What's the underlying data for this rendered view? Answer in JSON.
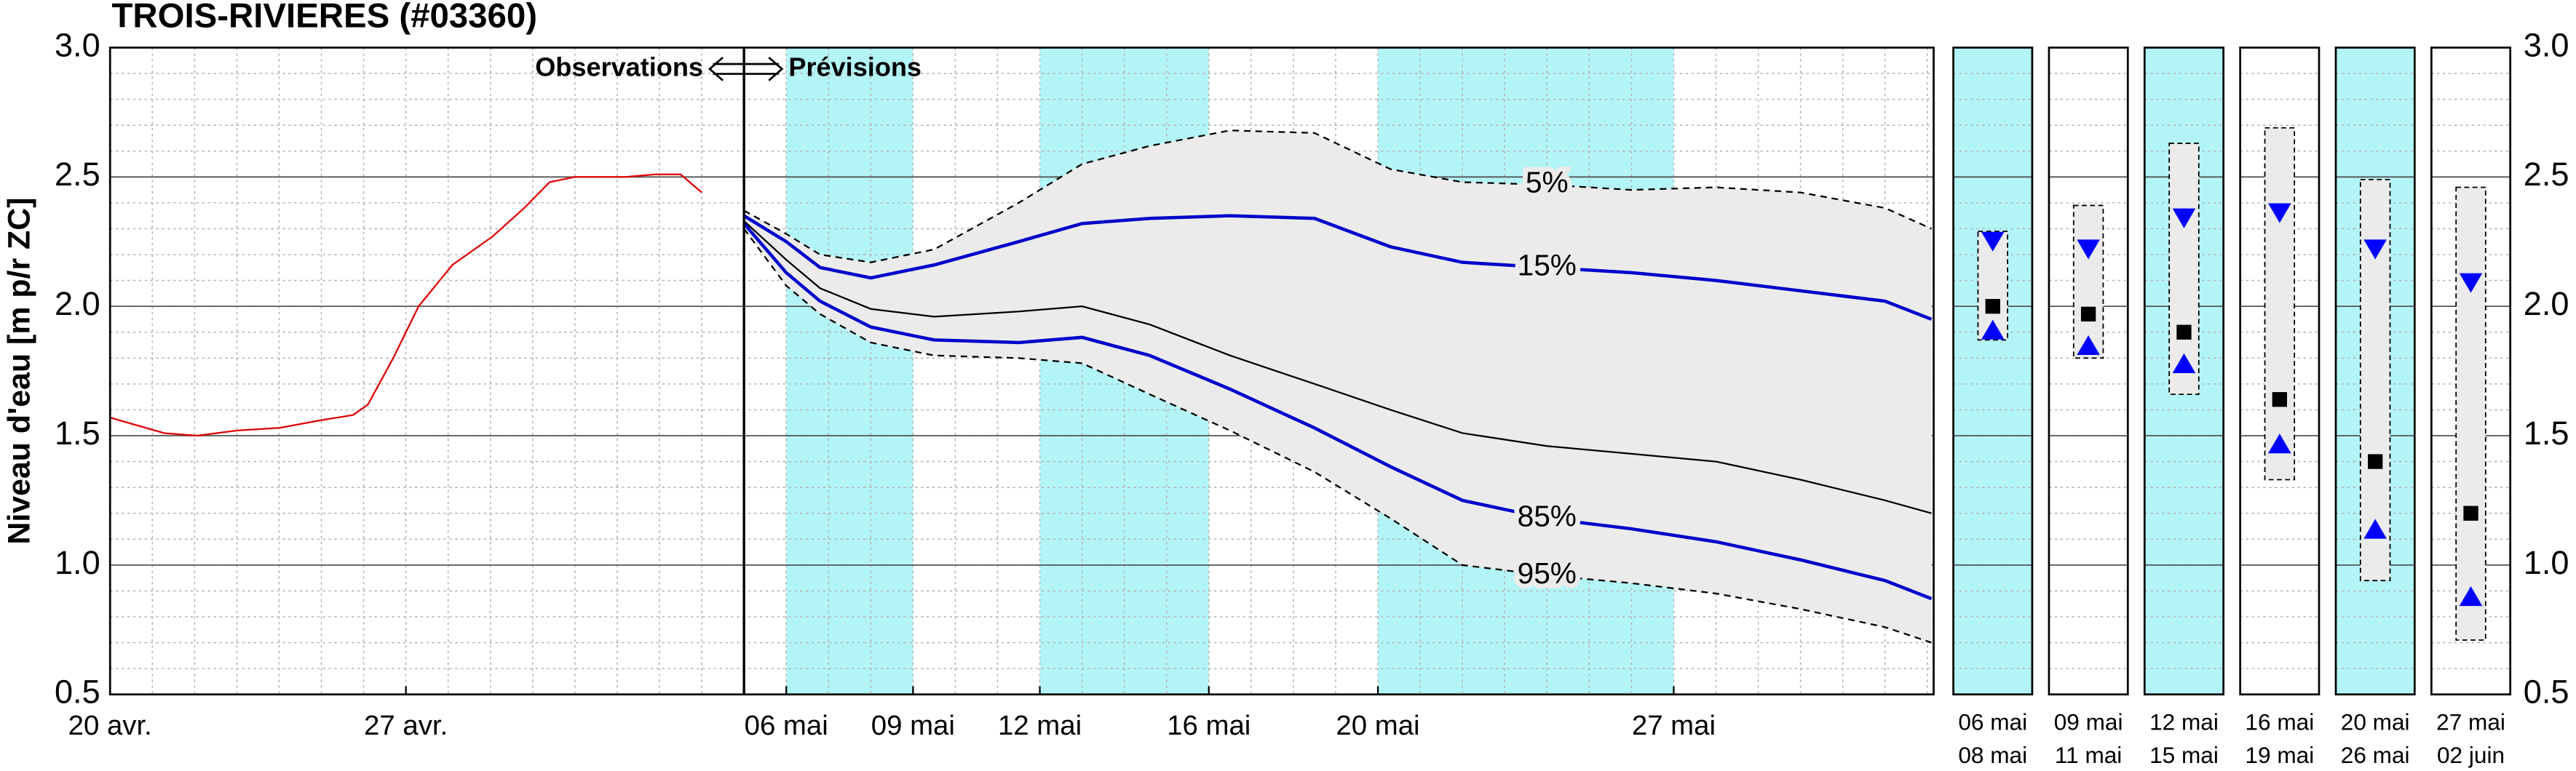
{
  "chart_data": [
    {
      "type": "line",
      "title": "TROIS-RIVIERES (#03360)",
      "y_label": "Niveau d'eau [m p/r ZC]",
      "annotations": {
        "left": "Observations",
        "right": "Prévisions"
      },
      "divider": 15,
      "xlim": [
        0,
        43.15
      ],
      "xticks": [
        {
          "value": 0,
          "label": "20 avr."
        },
        {
          "value": 7,
          "label": "27 avr."
        },
        {
          "value": 16,
          "label": "06 mai"
        },
        {
          "value": 19,
          "label": "09 mai"
        },
        {
          "value": 22,
          "label": "12 mai"
        },
        {
          "value": 26,
          "label": "16 mai"
        },
        {
          "value": 30,
          "label": "20 mai"
        },
        {
          "value": 37,
          "label": "27 mai"
        }
      ],
      "ylim": [
        0.5,
        3.0
      ],
      "yticks": [
        0.5,
        {
          "value": 1.0,
          "label": "1.0"
        },
        1.5,
        {
          "value": 2.0,
          "label": "2.0"
        },
        2.5,
        {
          "value": 3.0,
          "label": "3.0"
        }
      ],
      "grid": true,
      "minor_grid": true,
      "bands": [
        [
          16,
          19
        ],
        [
          22,
          26
        ],
        [
          30,
          37
        ]
      ],
      "band_color": "#b3f5f7",
      "fill": {
        "between": [
          1,
          5
        ],
        "color": "#ebebeb"
      },
      "series": [
        {
          "color": "#e00000",
          "width": 1,
          "dashed": false,
          "x": [
            0,
            1.28,
            2.06,
            3.0,
            4.0,
            5.0,
            5.75,
            6.1,
            6.7,
            7.3,
            8.1,
            9.05,
            9.8,
            10.4,
            11.0,
            12.2,
            12.9,
            13.5,
            14.0
          ],
          "values": [
            1.57,
            1.51,
            1.5,
            1.52,
            1.53,
            1.56,
            1.58,
            1.62,
            1.8,
            2.0,
            2.16,
            2.27,
            2.38,
            2.48,
            2.5,
            2.5,
            2.51,
            2.51,
            2.44
          ]
        },
        {
          "name": "5%",
          "color": "#000000",
          "width": 1,
          "dashed": true,
          "x": [
            15,
            16,
            16.8,
            18,
            19.5,
            21.5,
            23,
            24.6,
            26.5,
            28.5,
            30.3,
            32,
            34,
            36,
            38,
            40,
            42,
            43.1
          ],
          "values": [
            2.37,
            2.28,
            2.2,
            2.17,
            2.22,
            2.4,
            2.55,
            2.62,
            2.68,
            2.67,
            2.53,
            2.48,
            2.47,
            2.45,
            2.46,
            2.44,
            2.38,
            2.3
          ]
        },
        {
          "name": "15%",
          "color": "#0000cc",
          "width": 2,
          "dashed": false,
          "x": [
            15,
            16,
            16.8,
            18,
            19.5,
            21.5,
            23,
            24.6,
            26.5,
            28.5,
            30.3,
            32,
            34,
            36,
            38,
            40,
            42,
            43.1
          ],
          "values": [
            2.35,
            2.25,
            2.15,
            2.11,
            2.16,
            2.25,
            2.32,
            2.34,
            2.35,
            2.34,
            2.23,
            2.17,
            2.15,
            2.13,
            2.1,
            2.06,
            2.02,
            1.95
          ]
        },
        {
          "color": "#000000",
          "width": 1,
          "dashed": false,
          "x": [
            15,
            16,
            16.8,
            18,
            19.5,
            21.5,
            23,
            24.6,
            26.5,
            28.5,
            30.3,
            32,
            34,
            36,
            38,
            40,
            42,
            43.1
          ],
          "values": [
            2.33,
            2.18,
            2.07,
            1.99,
            1.96,
            1.98,
            2.0,
            1.93,
            1.81,
            1.7,
            1.6,
            1.51,
            1.46,
            1.43,
            1.4,
            1.33,
            1.25,
            1.2
          ]
        },
        {
          "name": "85%",
          "color": "#0000cc",
          "width": 2,
          "dashed": false,
          "x": [
            15,
            16,
            16.8,
            18,
            19.5,
            21.5,
            23,
            24.6,
            26.5,
            28.5,
            30.3,
            32,
            34,
            36,
            38,
            40,
            42,
            43.1
          ],
          "values": [
            2.32,
            2.13,
            2.02,
            1.92,
            1.87,
            1.86,
            1.88,
            1.81,
            1.68,
            1.53,
            1.38,
            1.25,
            1.18,
            1.14,
            1.09,
            1.02,
            0.94,
            0.87
          ]
        },
        {
          "name": "95%",
          "color": "#000000",
          "width": 1,
          "dashed": true,
          "x": [
            15,
            16,
            16.8,
            18,
            19.5,
            21.5,
            23,
            24.6,
            26.5,
            28.5,
            30.3,
            32,
            34,
            36,
            38,
            40,
            42,
            43.1
          ],
          "values": [
            2.3,
            2.08,
            1.97,
            1.86,
            1.81,
            1.8,
            1.78,
            1.66,
            1.52,
            1.36,
            1.18,
            1.0,
            0.96,
            0.93,
            0.89,
            0.83,
            0.76,
            0.7
          ]
        }
      ]
    },
    {
      "type": "range",
      "ylim": [
        0.5,
        3.0
      ],
      "yticks": [
        0.5,
        {
          "value": 1.0,
          "label": "1.0"
        },
        1.5,
        {
          "value": 2.0,
          "label": "2.0"
        },
        2.5,
        {
          "value": 3.0,
          "label": "3.0"
        }
      ],
      "shade_color": "#b3f5f7",
      "box_color": "#ebebeb",
      "median_color": "#000000",
      "marker_color": "#0000ff",
      "panels": [
        {
          "start": "06 mai",
          "end": "08 mai",
          "shaded": true,
          "high": 2.29,
          "upper": 2.25,
          "median": 2.0,
          "lower": 1.91,
          "low": 1.87
        },
        {
          "start": "09 mai",
          "end": "11 mai",
          "shaded": false,
          "high": 2.39,
          "upper": 2.22,
          "median": 1.97,
          "lower": 1.85,
          "low": 1.8
        },
        {
          "start": "12 mai",
          "end": "15 mai",
          "shaded": true,
          "high": 2.63,
          "upper": 2.34,
          "median": 1.9,
          "lower": 1.78,
          "low": 1.66
        },
        {
          "start": "16 mai",
          "end": "19 mai",
          "shaded": false,
          "high": 2.69,
          "upper": 2.36,
          "median": 1.64,
          "lower": 1.47,
          "low": 1.33
        },
        {
          "start": "20 mai",
          "end": "26 mai",
          "shaded": true,
          "high": 2.49,
          "upper": 2.22,
          "median": 1.4,
          "lower": 1.14,
          "low": 0.94
        },
        {
          "start": "27 mai",
          "end": "02 juin",
          "shaded": false,
          "high": 2.46,
          "upper": 2.09,
          "median": 1.2,
          "lower": 0.88,
          "low": 0.71
        }
      ]
    }
  ]
}
